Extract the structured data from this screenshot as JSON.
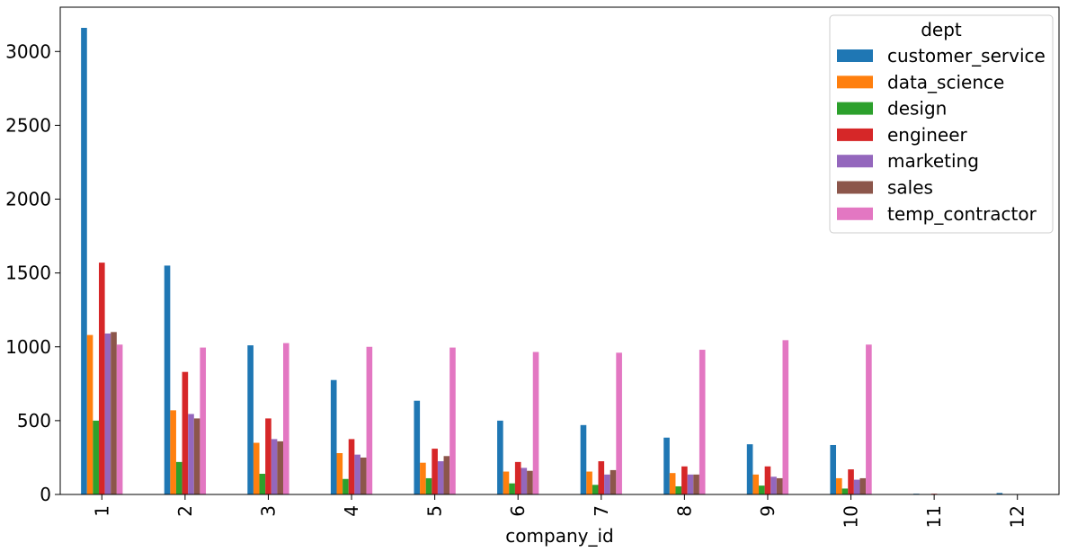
{
  "chart_data": {
    "type": "bar",
    "title": "",
    "xlabel": "company_id",
    "ylabel": "",
    "ylim": [
      0,
      3300
    ],
    "yticks": [
      0,
      500,
      1000,
      1500,
      2000,
      2500,
      3000
    ],
    "categories": [
      "1",
      "2",
      "3",
      "4",
      "5",
      "6",
      "7",
      "8",
      "9",
      "10",
      "11",
      "12"
    ],
    "grid": false,
    "legend": {
      "title": "dept",
      "position": "top-right"
    },
    "series": [
      {
        "name": "customer_service",
        "color": "#1f77b4",
        "values": [
          3160,
          1550,
          1010,
          775,
          635,
          500,
          470,
          385,
          340,
          335,
          5,
          10
        ]
      },
      {
        "name": "data_science",
        "color": "#ff7f0e",
        "values": [
          1080,
          570,
          350,
          280,
          215,
          155,
          155,
          145,
          135,
          110,
          0,
          0
        ]
      },
      {
        "name": "design",
        "color": "#2ca02c",
        "values": [
          500,
          220,
          140,
          105,
          110,
          75,
          65,
          55,
          60,
          40,
          0,
          0
        ]
      },
      {
        "name": "engineer",
        "color": "#d62728",
        "values": [
          1570,
          830,
          515,
          375,
          310,
          220,
          225,
          190,
          190,
          170,
          5,
          0
        ]
      },
      {
        "name": "marketing",
        "color": "#9467bd",
        "values": [
          1090,
          545,
          375,
          270,
          225,
          180,
          135,
          135,
          120,
          100,
          0,
          0
        ]
      },
      {
        "name": "sales",
        "color": "#8c564b",
        "values": [
          1100,
          515,
          360,
          250,
          260,
          160,
          165,
          135,
          110,
          110,
          0,
          0
        ]
      },
      {
        "name": "temp_contractor",
        "color": "#e377c2",
        "values": [
          1015,
          995,
          1025,
          1000,
          995,
          965,
          960,
          980,
          1045,
          1015,
          0,
          0
        ]
      }
    ]
  }
}
